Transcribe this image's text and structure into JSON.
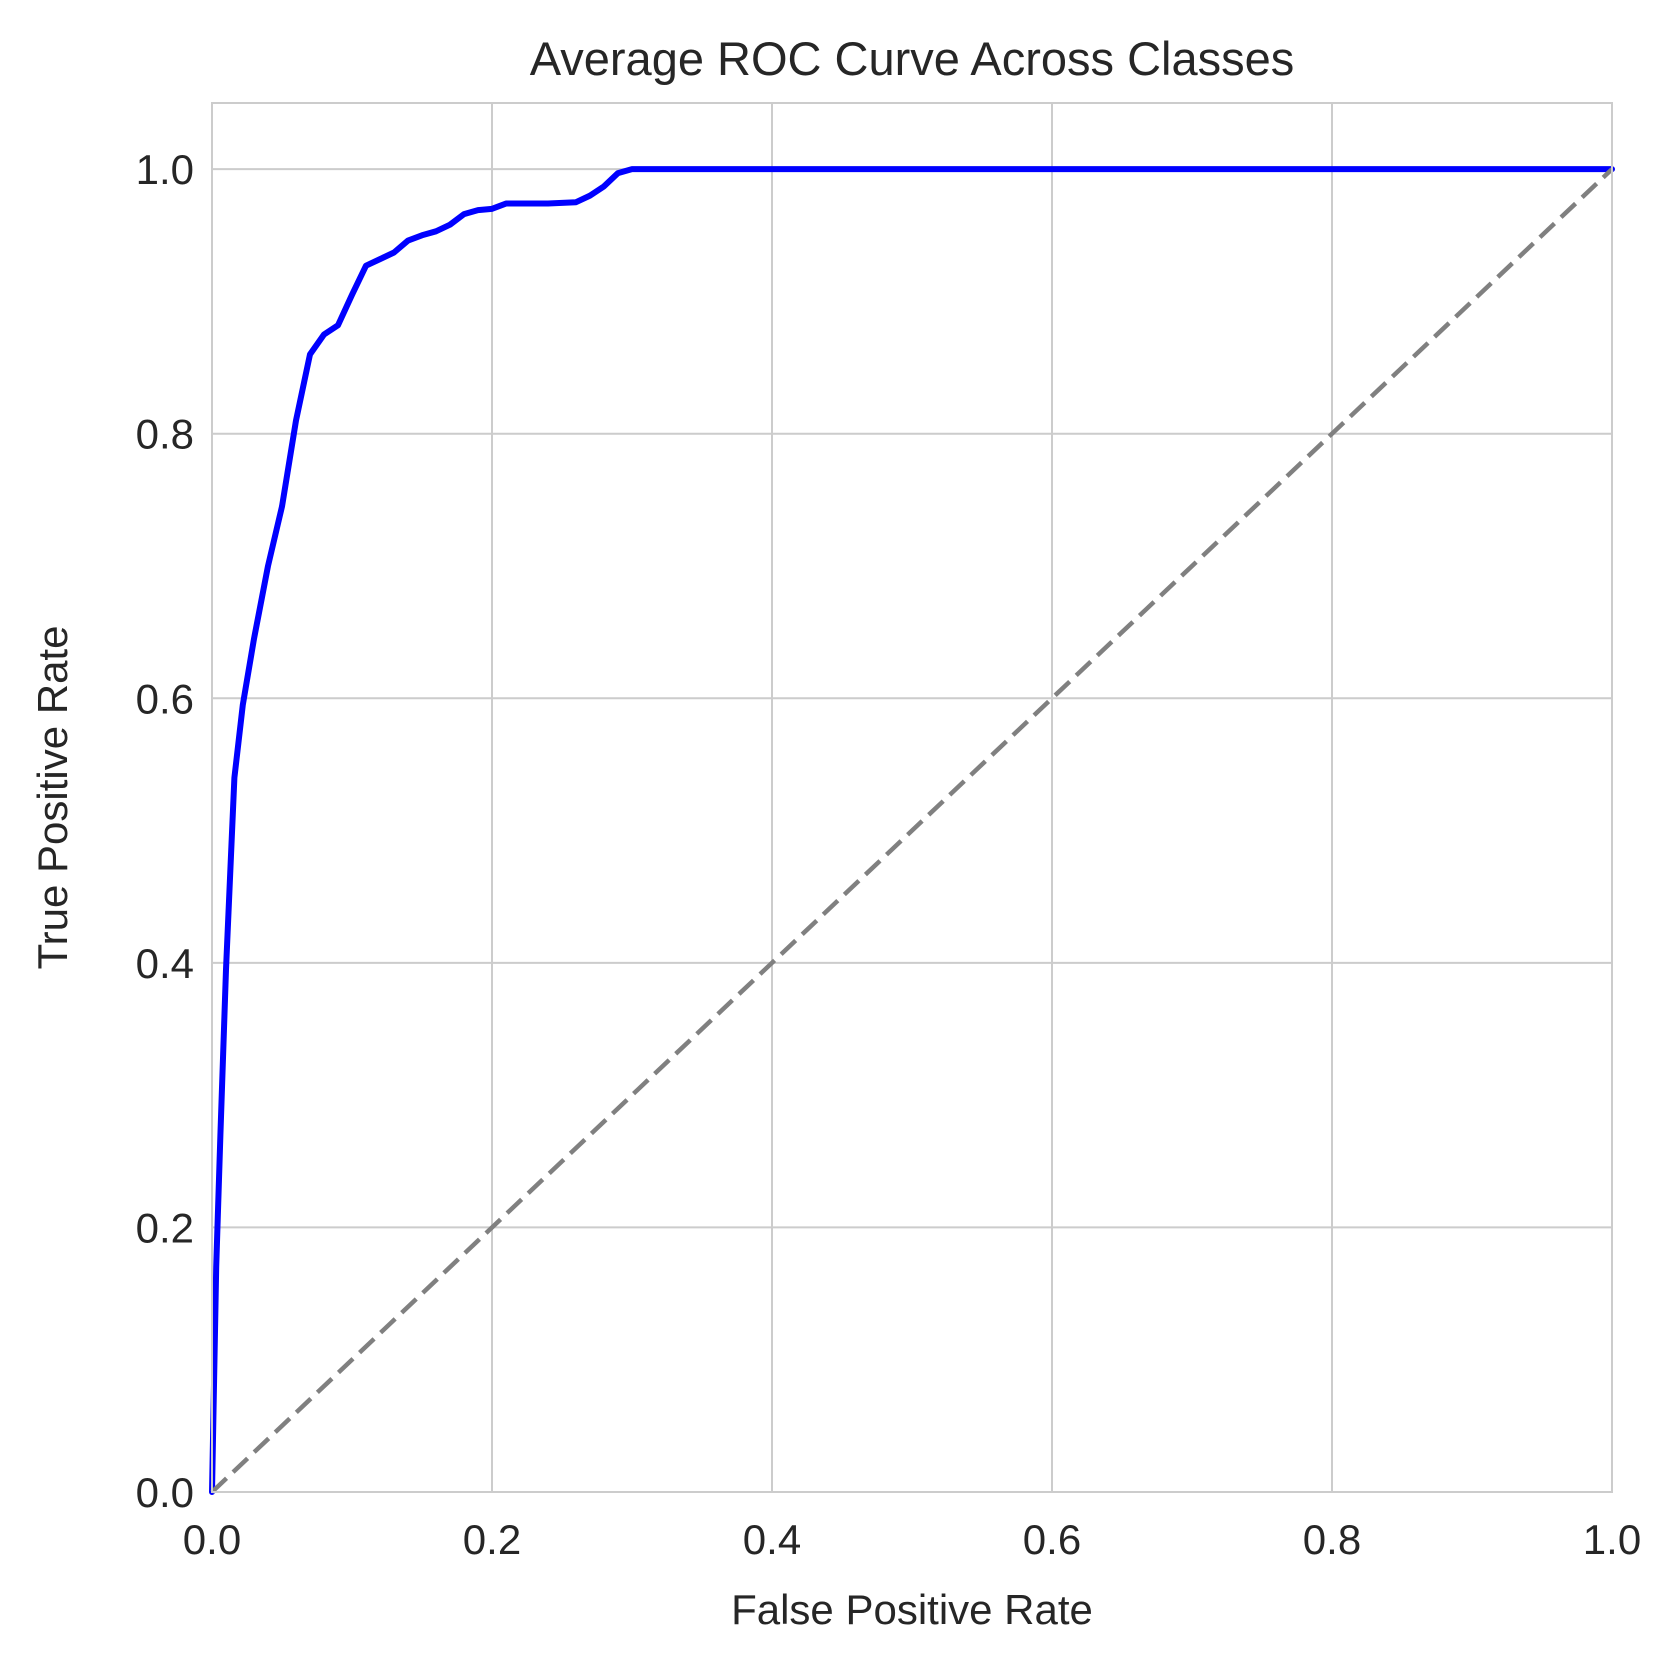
{
  "chart_data": {
    "type": "line",
    "title": "Average ROC Curve Across Classes",
    "xlabel": "False Positive Rate",
    "ylabel": "True Positive Rate",
    "xlim": [
      0.0,
      1.0
    ],
    "ylim": [
      0.0,
      1.05
    ],
    "xticks": [
      "0.0",
      "0.2",
      "0.4",
      "0.6",
      "0.8",
      "1.0"
    ],
    "yticks": [
      "0.0",
      "0.2",
      "0.4",
      "0.6",
      "0.8",
      "1.0"
    ],
    "grid": true,
    "legend": "none",
    "series": [
      {
        "color": "#0000ff",
        "line_style": "solid",
        "x": [
          0.0,
          0.003,
          0.006,
          0.01,
          0.016,
          0.022,
          0.03,
          0.04,
          0.05,
          0.06,
          0.07,
          0.08,
          0.09,
          0.1,
          0.11,
          0.12,
          0.13,
          0.14,
          0.15,
          0.16,
          0.17,
          0.18,
          0.19,
          0.2,
          0.21,
          0.22,
          0.24,
          0.26,
          0.27,
          0.28,
          0.29,
          0.3,
          0.35,
          0.4,
          0.5,
          0.6,
          0.7,
          0.8,
          0.9,
          1.0
        ],
        "y": [
          0.0,
          0.17,
          0.27,
          0.395,
          0.54,
          0.595,
          0.645,
          0.7,
          0.745,
          0.81,
          0.86,
          0.875,
          0.882,
          0.905,
          0.927,
          0.932,
          0.937,
          0.946,
          0.95,
          0.953,
          0.958,
          0.966,
          0.969,
          0.97,
          0.974,
          0.974,
          0.974,
          0.975,
          0.98,
          0.987,
          0.997,
          1.0,
          1.0,
          1.0,
          1.0,
          1.0,
          1.0,
          1.0,
          1.0,
          1.0
        ]
      },
      {
        "color": "#808080",
        "line_style": "dashed",
        "x": [
          0.0,
          1.0
        ],
        "y": [
          0.0,
          1.0
        ]
      }
    ],
    "colors": {
      "grid": "#cccccc",
      "axes_edge": "#cccccc",
      "text": "#262626",
      "background": "#ffffff"
    }
  }
}
